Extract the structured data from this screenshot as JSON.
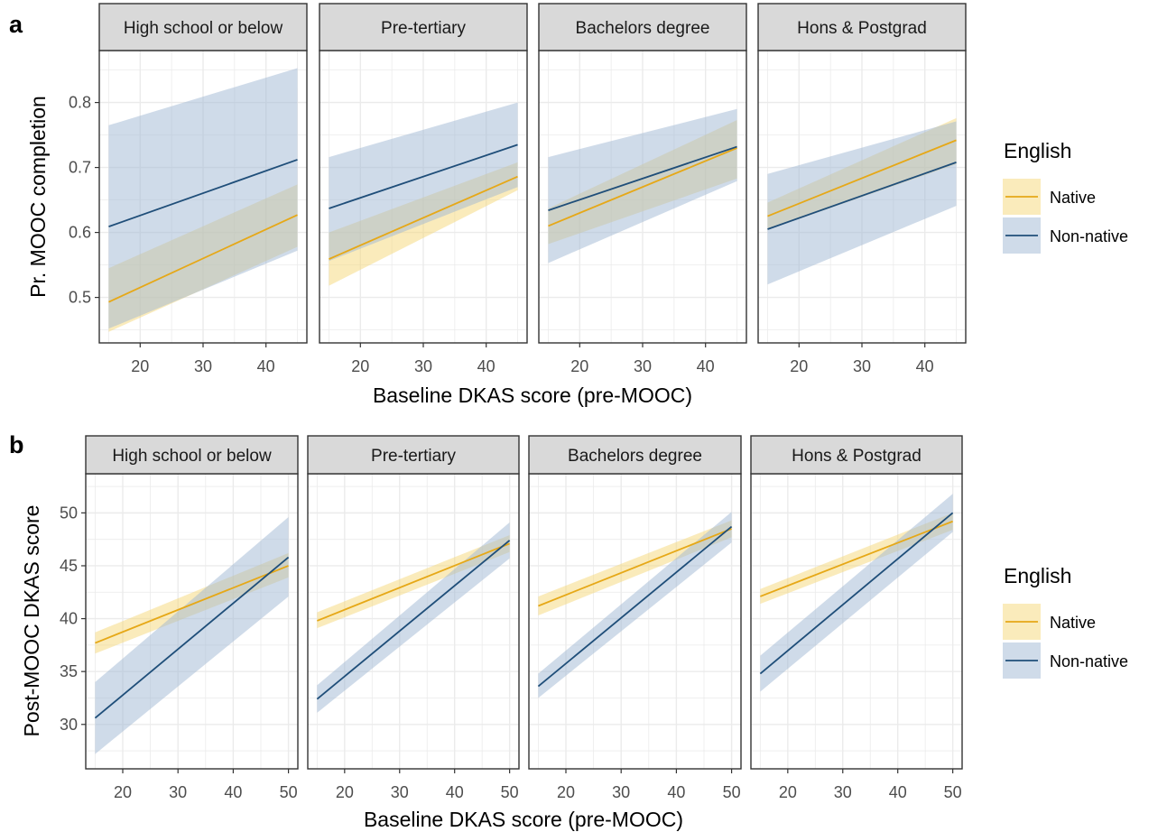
{
  "figure": {
    "colors": {
      "native": "#E6A817",
      "non_native": "#1F4E79",
      "native_band": "#F5D778",
      "non_native_band": "#9FB8D3",
      "grid": "#EBEBEB",
      "strip_fill": "#D9D9D9"
    }
  },
  "chart_data": [
    {
      "type": "line",
      "panel_label": "a",
      "facets": [
        "High school or below",
        "Pre-tertiary",
        "Bachelors degree",
        "Hons & Postgrad"
      ],
      "xlabel": "Baseline DKAS score (pre-MOOC)",
      "ylabel": "Pr. MOOC completion",
      "xlim": [
        13.5,
        46.5
      ],
      "ylim": [
        0.43,
        0.88
      ],
      "xticks": [
        20,
        30,
        40
      ],
      "yticks": [
        0.5,
        0.6,
        0.7,
        0.8
      ],
      "x": [
        15,
        45
      ],
      "grid": true,
      "legend": {
        "title": "English",
        "position": "right",
        "entries": [
          "Native",
          "Non-native"
        ]
      },
      "series": [
        {
          "name": "Native",
          "color": "#E6A817",
          "panels": [
            {
              "y": [
                0.493,
                0.627
              ],
              "lo": [
                0.447,
                0.578
              ],
              "hi": [
                0.545,
                0.674
              ]
            },
            {
              "y": [
                0.559,
                0.686
              ],
              "lo": [
                0.518,
                0.665
              ],
              "hi": [
                0.6,
                0.708
              ]
            },
            {
              "y": [
                0.61,
                0.73
              ],
              "lo": [
                0.582,
                0.683
              ],
              "hi": [
                0.637,
                0.773
              ]
            },
            {
              "y": [
                0.625,
                0.742
              ],
              "lo": [
                0.604,
                0.705
              ],
              "hi": [
                0.646,
                0.776
              ]
            }
          ]
        },
        {
          "name": "Non-native",
          "color": "#1F4E79",
          "panels": [
            {
              "y": [
                0.609,
                0.712
              ],
              "lo": [
                0.452,
                0.572
              ],
              "hi": [
                0.765,
                0.853
              ]
            },
            {
              "y": [
                0.637,
                0.735
              ],
              "lo": [
                0.556,
                0.67
              ],
              "hi": [
                0.716,
                0.8
              ]
            },
            {
              "y": [
                0.634,
                0.732
              ],
              "lo": [
                0.553,
                0.679
              ],
              "hi": [
                0.716,
                0.79
              ]
            },
            {
              "y": [
                0.605,
                0.708
              ],
              "lo": [
                0.52,
                0.641
              ],
              "hi": [
                0.69,
                0.771
              ]
            }
          ]
        }
      ]
    },
    {
      "type": "line",
      "panel_label": "b",
      "facets": [
        "High school or below",
        "Pre-tertiary",
        "Bachelors degree",
        "Hons & Postgrad"
      ],
      "xlabel": "Baseline DKAS score (pre-MOOC)",
      "ylabel": "Post-MOOC DKAS score",
      "xlim": [
        13.3,
        51.7
      ],
      "ylim": [
        25.8,
        53.7
      ],
      "xticks": [
        20,
        30,
        40,
        50
      ],
      "yticks": [
        30,
        35,
        40,
        45,
        50
      ],
      "x": [
        15,
        50
      ],
      "grid": true,
      "legend": {
        "title": "English",
        "position": "right",
        "entries": [
          "Native",
          "Non-native"
        ]
      },
      "series": [
        {
          "name": "Native",
          "color": "#E6A817",
          "panels": [
            {
              "y": [
                37.7,
                45.0
              ],
              "lo": [
                36.7,
                43.9
              ],
              "hi": [
                38.7,
                46.2
              ]
            },
            {
              "y": [
                39.8,
                47.1
              ],
              "lo": [
                39.1,
                46.3
              ],
              "hi": [
                40.6,
                47.9
              ]
            },
            {
              "y": [
                41.2,
                48.5
              ],
              "lo": [
                40.3,
                47.7
              ],
              "hi": [
                42.1,
                49.3
              ]
            },
            {
              "y": [
                42.1,
                49.2
              ],
              "lo": [
                41.4,
                48.4
              ],
              "hi": [
                42.8,
                50.0
              ]
            }
          ]
        },
        {
          "name": "Non-native",
          "color": "#1F4E79",
          "panels": [
            {
              "y": [
                30.6,
                45.8
              ],
              "lo": [
                27.2,
                42.1
              ],
              "hi": [
                34.0,
                49.6
              ]
            },
            {
              "y": [
                32.4,
                47.4
              ],
              "lo": [
                31.1,
                45.7
              ],
              "hi": [
                33.7,
                49.1
              ]
            },
            {
              "y": [
                33.6,
                48.7
              ],
              "lo": [
                32.5,
                47.2
              ],
              "hi": [
                34.8,
                50.1
              ]
            },
            {
              "y": [
                34.8,
                50.0
              ],
              "lo": [
                33.1,
                48.2
              ],
              "hi": [
                36.5,
                51.8
              ]
            }
          ]
        }
      ]
    }
  ]
}
